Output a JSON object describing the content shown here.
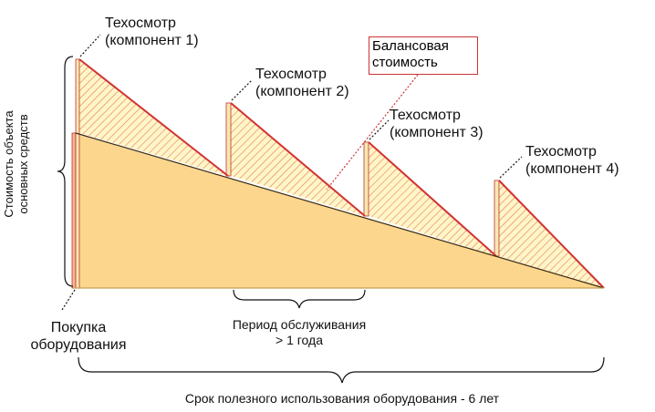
{
  "labels": {
    "inspections": [
      "Техосмотр\n(компонент 1)",
      "Техосмотр\n(компонент 2)",
      "Техосмотр\n(компонент 3)",
      "Техосмотр\n(компонент 4)"
    ],
    "book_value": "Балансовая\nстоимость",
    "y_axis": "Стоимость объекта\nосновных средств",
    "purchase": "Покупка\nоборудования",
    "service_period": "Период обслуживания\n> 1 года",
    "useful_life": "Срок полезного использования оборудования - 6 лет"
  },
  "colors": {
    "fill": "#fbd68c",
    "hatch_bg": "#fff6c8",
    "hatch_line": "#e03c3c",
    "edge": "#d23232",
    "outline": "#3a2a10"
  }
}
